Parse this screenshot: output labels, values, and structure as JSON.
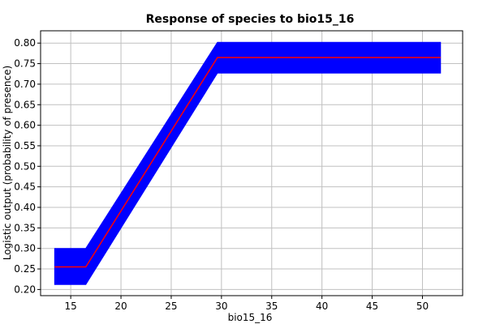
{
  "chart_data": {
    "type": "line",
    "title": "Response of species to bio15_16",
    "xlabel": "bio15_16",
    "ylabel": "Logistic output (probability of presence)",
    "xlim": [
      12,
      54
    ],
    "ylim": [
      0.185,
      0.83
    ],
    "xticks": [
      15,
      20,
      25,
      30,
      35,
      40,
      45,
      50
    ],
    "yticks": [
      0.2,
      0.25,
      0.3,
      0.35,
      0.4,
      0.45,
      0.5,
      0.55,
      0.6,
      0.65,
      0.7,
      0.75,
      0.8
    ],
    "grid": true,
    "series": [
      {
        "role": "mean",
        "color": "#ff0000",
        "x": [
          13.4,
          16.5,
          29.6,
          51.8
        ],
        "y": [
          0.255,
          0.255,
          0.765,
          0.765
        ]
      },
      {
        "role": "band",
        "color": "#0000ff",
        "x": [
          13.4,
          16.5,
          29.6,
          51.8
        ],
        "upper": [
          0.3,
          0.3,
          0.802,
          0.802
        ],
        "lower": [
          0.212,
          0.212,
          0.727,
          0.727
        ]
      }
    ]
  }
}
